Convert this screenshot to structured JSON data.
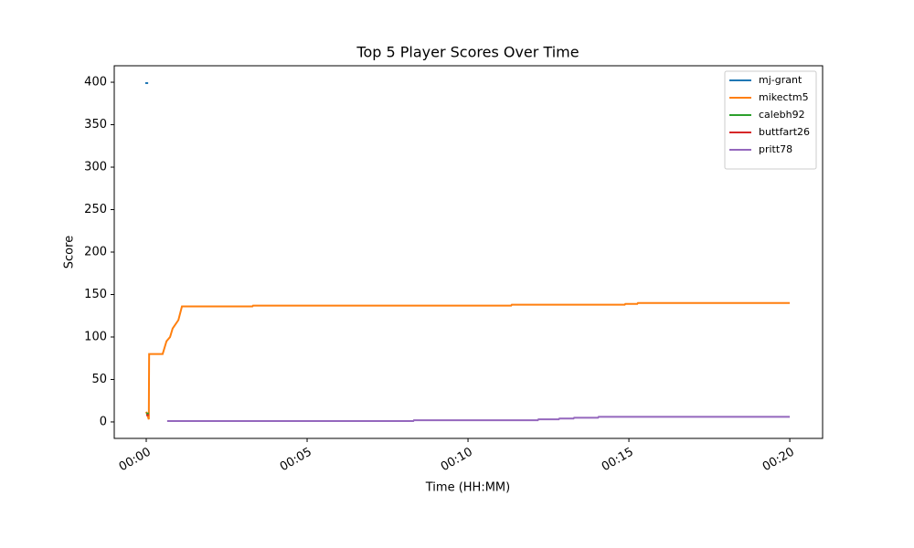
{
  "chart_data": {
    "type": "line",
    "title": "Top 5 Player Scores Over Time",
    "x_label": "Time (HH:MM)",
    "y_label": "Score",
    "xlim": [
      -0.994,
      21.02
    ],
    "ylim": [
      -19.4,
      419.4
    ],
    "xticks": [
      {
        "value": 0,
        "label": "00:00"
      },
      {
        "value": 5,
        "label": "00:05"
      },
      {
        "value": 10,
        "label": "00:10"
      },
      {
        "value": 15,
        "label": "00:15"
      },
      {
        "value": 20,
        "label": "00:20"
      }
    ],
    "yticks": [
      0,
      50,
      100,
      150,
      200,
      250,
      300,
      350,
      400
    ],
    "legend": "upper right",
    "grid": false,
    "series": [
      {
        "name": "mj-grant",
        "color": "#1f77b4",
        "x": [
          -0.03,
          0.06
        ],
        "values": [
          399,
          399
        ]
      },
      {
        "name": "mikectm5",
        "color": "#ff7f0e",
        "x": [
          0,
          0.08,
          0.09,
          0.51,
          0.63,
          0.74,
          0.82,
          1.0,
          1.11,
          3.3,
          3.32,
          11.34,
          11.36,
          14.87,
          14.89,
          15.26,
          15.28,
          20
        ],
        "values": [
          12,
          3,
          80,
          80,
          95,
          100,
          110,
          120,
          136,
          136,
          137,
          137,
          138,
          138,
          139,
          139,
          140,
          140
        ]
      },
      {
        "name": "calebh92",
        "color": "#2ca02c",
        "x": [
          0,
          0.08
        ],
        "values": [
          10,
          10
        ]
      },
      {
        "name": "buttfart26",
        "color": "#d62728",
        "x": [
          0,
          0.08
        ],
        "values": [
          8,
          8
        ]
      },
      {
        "name": "pritt78",
        "color": "#9467bd",
        "x": [
          0.65,
          8.3,
          8.32,
          12.17,
          12.19,
          12.82,
          12.84,
          13.28,
          13.3,
          14.04,
          14.06,
          20
        ],
        "values": [
          1,
          1,
          2,
          2,
          3,
          3,
          4,
          4,
          5,
          5,
          6,
          6
        ]
      }
    ]
  }
}
